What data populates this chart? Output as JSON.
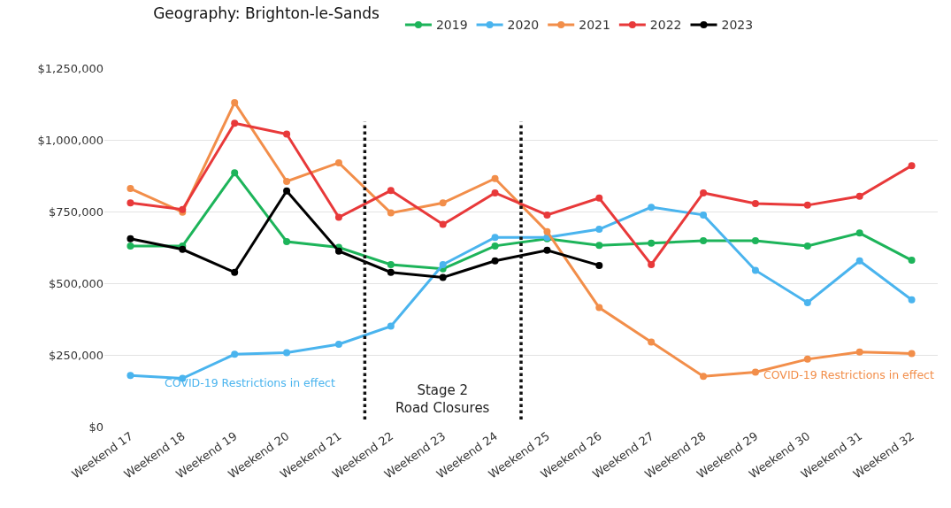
{
  "chart_data": {
    "type": "line",
    "title": "Geography: Brighton-le-Sands",
    "categories": [
      "Weekend 17",
      "Weekend 18",
      "Weekend 19",
      "Weekend 20",
      "Weekend 21",
      "Weekend 22",
      "Weekend 23",
      "Weekend 24",
      "Weekend 25",
      "Weekend 26",
      "Weekend 27",
      "Weekend 28",
      "Weekend 29",
      "Weekend 30",
      "Weekend 31",
      "Weekend 32"
    ],
    "series": [
      {
        "name": "2019",
        "color": "#1db45a",
        "values": [
          630000,
          630000,
          885000,
          645000,
          625000,
          565000,
          550000,
          630000,
          655000,
          632000,
          640000,
          648000,
          648000,
          630000,
          675000,
          580000
        ]
      },
      {
        "name": "2020",
        "color": "#4ab4ee",
        "values": [
          178000,
          168000,
          252000,
          258000,
          287000,
          350000,
          565000,
          660000,
          660000,
          688000,
          765000,
          738000,
          545000,
          432000,
          578000,
          442000
        ]
      },
      {
        "name": "2021",
        "color": "#f28e4a",
        "values": [
          830000,
          748000,
          1130000,
          855000,
          920000,
          745000,
          780000,
          865000,
          680000,
          415000,
          295000,
          175000,
          190000,
          235000,
          260000,
          255000
        ]
      },
      {
        "name": "2022",
        "color": "#e8393a",
        "values": [
          780000,
          757000,
          1058000,
          1020000,
          730000,
          823000,
          705000,
          815000,
          738000,
          797000,
          565000,
          815000,
          778000,
          772000,
          803000,
          910000
        ]
      },
      {
        "name": "2023",
        "color": "#000000",
        "values": [
          655000,
          618000,
          538000,
          822000,
          612000,
          538000,
          520000,
          578000,
          615000,
          562000,
          null,
          null,
          null,
          null,
          null,
          null
        ]
      }
    ],
    "ylim": [
      0,
      1250000
    ],
    "yticks": [
      {
        "value": 0,
        "label": "$0"
      },
      {
        "value": 250000,
        "label": "$250,000"
      },
      {
        "value": 500000,
        "label": "$500,000"
      },
      {
        "value": 750000,
        "label": "$750,000"
      },
      {
        "value": 1000000,
        "label": "$1,000,000"
      },
      {
        "value": 1250000,
        "label": "$1,250,000"
      }
    ],
    "annotations": [
      "COVID-19 Restrictions in effect",
      "Stage 2\nRoad Closures",
      "COVID-19 Restrictions in effect"
    ],
    "grid": "y",
    "legend": "top",
    "marker": "circle",
    "line_style": "solid"
  }
}
